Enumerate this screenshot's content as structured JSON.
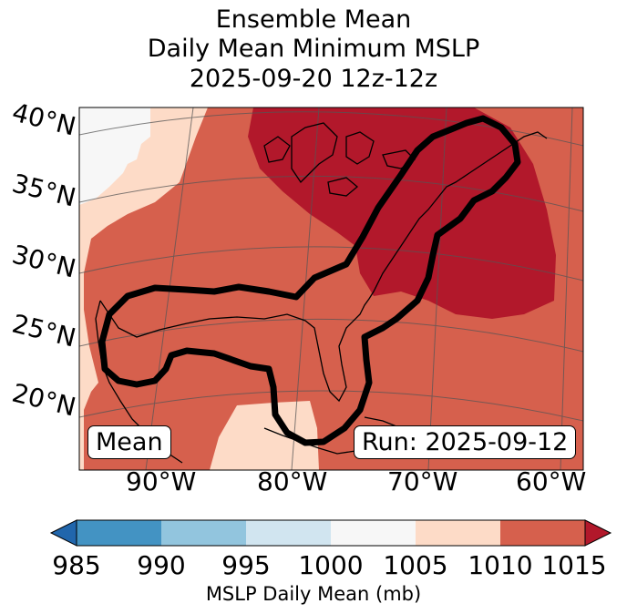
{
  "title": {
    "line1": "Ensemble Mean",
    "line2": "Daily Mean Minimum MSLP",
    "line3": "2025-09-20 12z-12z"
  },
  "map": {
    "lat_labels": [
      "40°N",
      "35°N",
      "30°N",
      "25°N",
      "20°N"
    ],
    "lon_labels": [
      "90°W",
      "80°W",
      "70°W",
      "60°W"
    ],
    "left_box": "Mean",
    "right_box": "Run: 2025-09-12"
  },
  "colorbar": {
    "ticks": [
      "985",
      "990",
      "995",
      "1000",
      "1005",
      "1010",
      "1015"
    ],
    "label": "MSLP Daily Mean (mb)",
    "bins": [
      {
        "range": "<985",
        "color": "#2166ac"
      },
      {
        "range": "985-990",
        "color": "#4393c3"
      },
      {
        "range": "990-995",
        "color": "#92c5de"
      },
      {
        "range": "995-1000",
        "color": "#d1e5f0"
      },
      {
        "range": "1000-1005",
        "color": "#f7f7f7"
      },
      {
        "range": "1005-1010",
        "color": "#fddbc7"
      },
      {
        "range": "1010-1015",
        "color": "#d6604d"
      },
      {
        "range": ">1015",
        "color": "#b2182b"
      }
    ]
  }
}
